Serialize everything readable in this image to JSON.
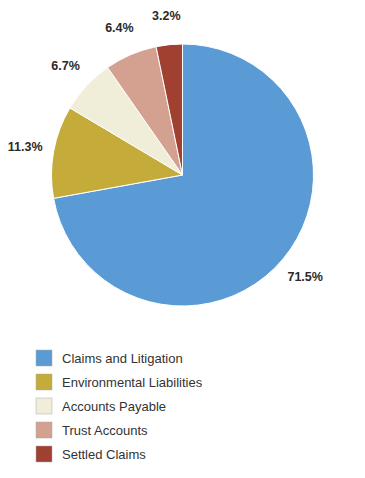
{
  "chart_data": {
    "type": "pie",
    "categories": [
      "Claims and Litigation",
      "Environmental Liabilities",
      "Accounts Payable",
      "Trust Accounts",
      "Settled Claims"
    ],
    "values": [
      71.5,
      11.3,
      6.7,
      6.4,
      3.2
    ],
    "value_labels": [
      "71.5%",
      "11.3%",
      "6.7%",
      "6.4%",
      "3.2%"
    ],
    "colors": [
      "#5b9bd5",
      "#c4ab3a",
      "#f0edd8",
      "#d4a090",
      "#a04030"
    ],
    "data_labels": true,
    "legend": "bottom"
  }
}
